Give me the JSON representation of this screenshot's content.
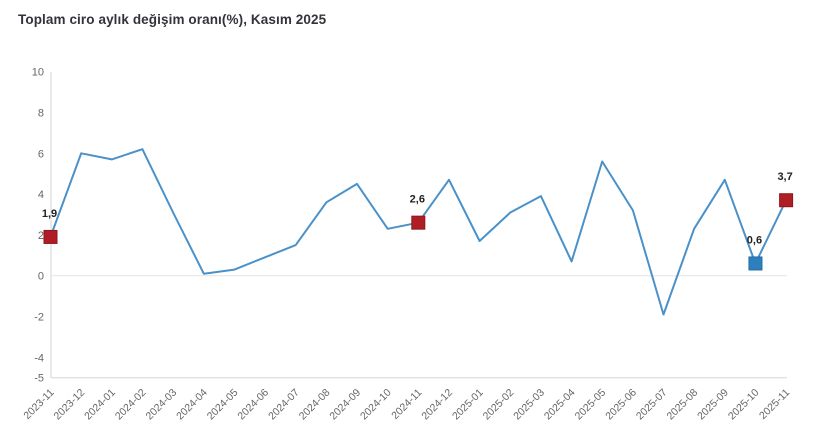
{
  "chart_data": {
    "type": "line",
    "title": "Toplam ciro aylık değişim oranı(%), Kasım 2025",
    "categories": [
      "2023-11",
      "2023-12",
      "2024-01",
      "2024-02",
      "2024-03",
      "2024-04",
      "2024-05",
      "2024-06",
      "2024-07",
      "2024-08",
      "2024-09",
      "2024-10",
      "2024-11",
      "2024-12",
      "2025-01",
      "2025-02",
      "2025-03",
      "2025-04",
      "2025-05",
      "2025-06",
      "2025-07",
      "2025-08",
      "2025-09",
      "2025-10",
      "2025-11"
    ],
    "values": [
      1.9,
      6.0,
      5.7,
      6.2,
      3.1,
      0.1,
      0.3,
      0.9,
      1.5,
      3.6,
      4.5,
      2.3,
      2.6,
      4.7,
      1.7,
      3.1,
      3.9,
      0.7,
      5.6,
      3.2,
      -1.9,
      2.3,
      4.7,
      0.6,
      3.7
    ],
    "ylim": [
      -5,
      10
    ],
    "yticks": [
      10,
      8,
      6,
      4,
      2,
      0,
      -2,
      -4,
      -5
    ],
    "xlabel": "",
    "ylabel": "",
    "grid": "zero-line-and-axis-only",
    "legend": "none",
    "highlighted_points": [
      {
        "category": "2023-11",
        "index": 0,
        "value": 1.9,
        "label": "1,9",
        "fill": "#ae1e24",
        "stroke": "#8f171d"
      },
      {
        "category": "2024-11",
        "index": 12,
        "value": 2.6,
        "label": "2,6",
        "fill": "#ae1e24",
        "stroke": "#8f171d"
      },
      {
        "category": "2025-10",
        "index": 23,
        "value": 0.6,
        "label": "0,6",
        "fill": "#2e7fbe",
        "stroke": "#246ba3"
      },
      {
        "category": "2025-11",
        "index": 24,
        "value": 3.7,
        "label": "3,7",
        "fill": "#ae1e24",
        "stroke": "#8f171d"
      }
    ],
    "colors": {
      "line": "#4a91c9",
      "axis_line": "#d6d6d6",
      "zero_line": "#e4e4e4",
      "tick_label": "#666666",
      "data_label": "#222222",
      "title": "#33333b",
      "background": "#ffffff"
    }
  }
}
